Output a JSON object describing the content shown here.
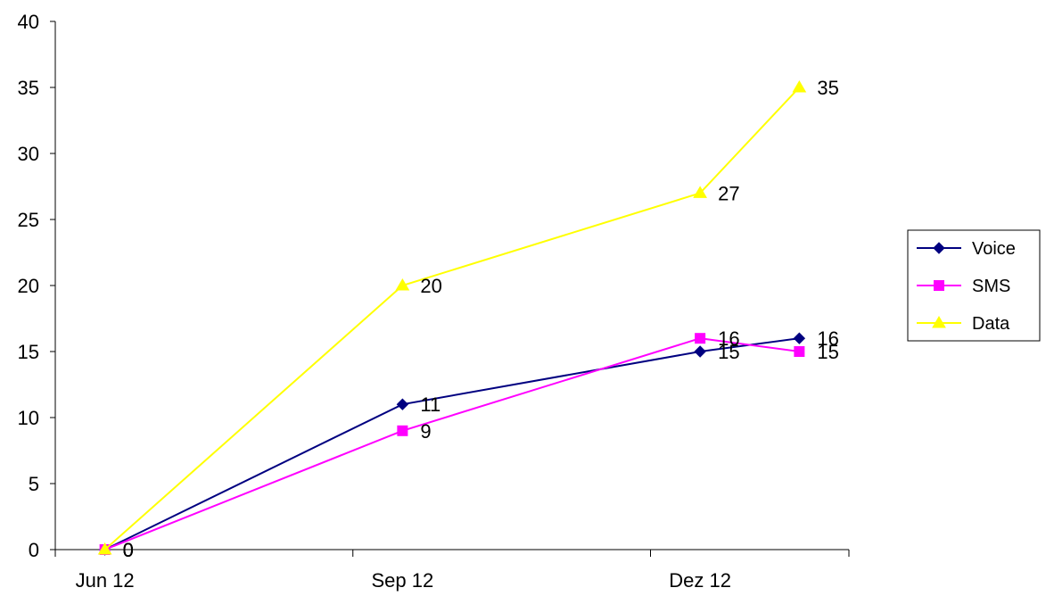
{
  "chart_data": {
    "type": "line",
    "title": "",
    "xlabel": "",
    "ylabel": "",
    "x_ticks": [
      {
        "label": "Jun 12",
        "x": 0
      },
      {
        "label": "Sep 12",
        "x": 3
      },
      {
        "label": "Dez 12",
        "x": 6
      }
    ],
    "xlim": [
      -0.5,
      7.5
    ],
    "ylim": [
      0,
      40
    ],
    "y_ticks": [
      0,
      5,
      10,
      15,
      20,
      25,
      30,
      35,
      40
    ],
    "grid": false,
    "legend_position": "right",
    "series": [
      {
        "name": "Voice",
        "color": "#000080",
        "marker": "diamond",
        "x": [
          0,
          3,
          6,
          7
        ],
        "values": [
          0,
          11,
          15,
          16
        ]
      },
      {
        "name": "SMS",
        "color": "#FF00FF",
        "marker": "square",
        "x": [
          0,
          3,
          6,
          7
        ],
        "values": [
          0,
          9,
          16,
          15
        ]
      },
      {
        "name": "Data",
        "color": "#FFFF00",
        "marker": "triangle",
        "x": [
          0,
          3,
          6,
          7
        ],
        "values": [
          0,
          20,
          27,
          35
        ]
      }
    ]
  }
}
